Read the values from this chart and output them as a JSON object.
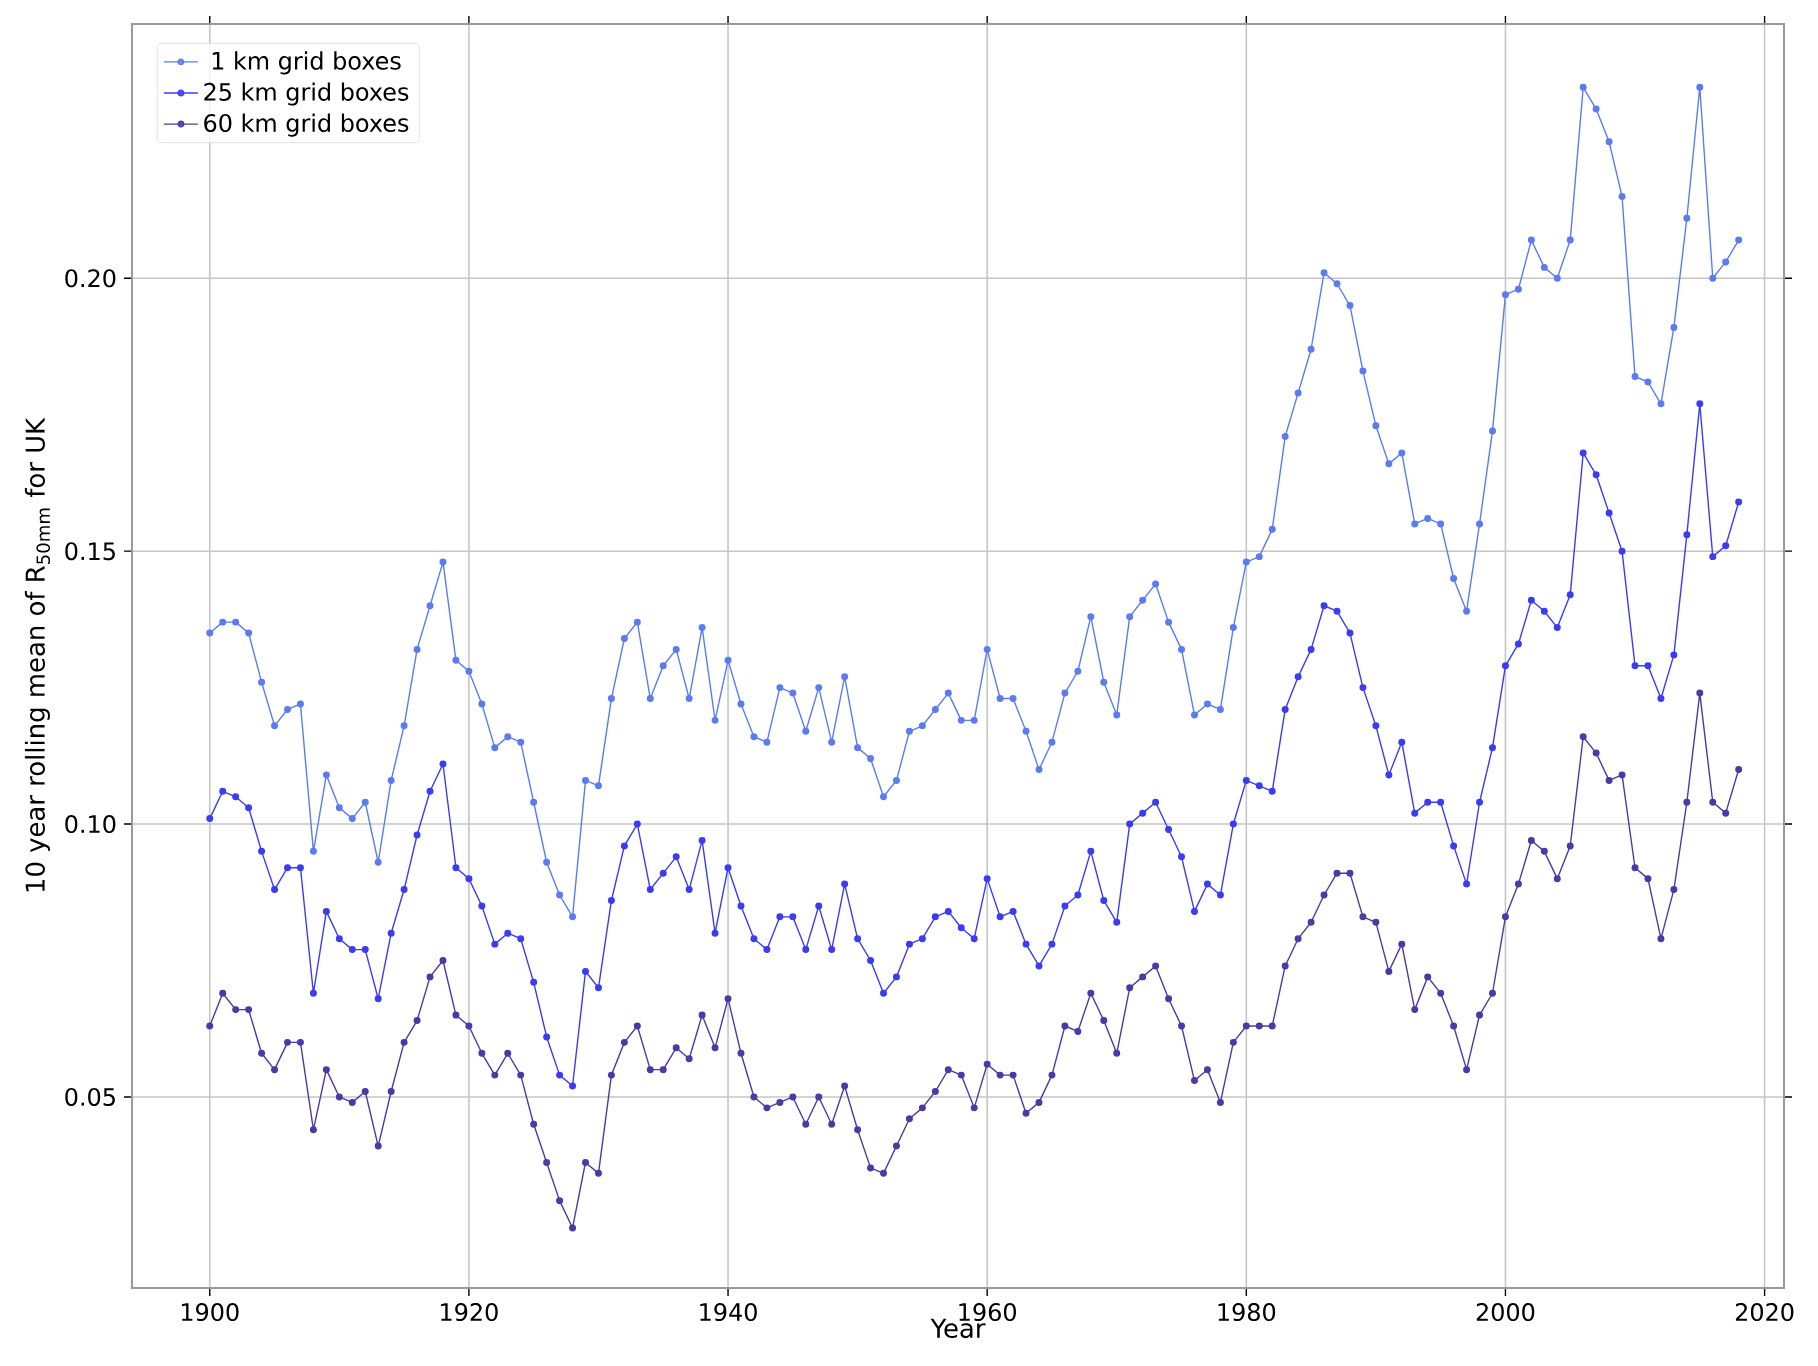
{
  "chart_data": {
    "type": "line",
    "xlabel": "Year",
    "ylabel": "10 year rolling mean of R$_{50mm}$ for UK",
    "x": [
      1900,
      1901,
      1902,
      1903,
      1904,
      1905,
      1906,
      1907,
      1908,
      1909,
      1910,
      1911,
      1912,
      1913,
      1914,
      1915,
      1916,
      1917,
      1918,
      1919,
      1920,
      1921,
      1922,
      1923,
      1924,
      1925,
      1926,
      1927,
      1928,
      1929,
      1930,
      1931,
      1932,
      1933,
      1934,
      1935,
      1936,
      1937,
      1938,
      1939,
      1940,
      1941,
      1942,
      1943,
      1944,
      1945,
      1946,
      1947,
      1948,
      1949,
      1950,
      1951,
      1952,
      1953,
      1954,
      1955,
      1956,
      1957,
      1958,
      1959,
      1960,
      1961,
      1962,
      1963,
      1964,
      1965,
      1966,
      1967,
      1968,
      1969,
      1970,
      1971,
      1972,
      1973,
      1974,
      1975,
      1976,
      1977,
      1978,
      1979,
      1980,
      1981,
      1982,
      1983,
      1984,
      1985,
      1986,
      1987,
      1988,
      1989,
      1990,
      1991,
      1992,
      1993,
      1994,
      1995,
      1996,
      1997,
      1998,
      1999,
      2000,
      2001,
      2002,
      2003,
      2004,
      2005,
      2006,
      2007,
      2008,
      2009,
      2010,
      2011,
      2012,
      2013,
      2014,
      2015,
      2016,
      2017,
      2018
    ],
    "series": [
      {
        "name": "1 km grid boxes",
        "color": "#5b7cf0",
        "values": [
          0.135,
          0.137,
          0.137,
          0.135,
          0.126,
          0.118,
          0.121,
          0.122,
          0.095,
          0.109,
          0.103,
          0.101,
          0.104,
          0.093,
          0.108,
          0.118,
          0.132,
          0.14,
          0.148,
          0.13,
          0.128,
          0.122,
          0.114,
          0.116,
          0.115,
          0.104,
          0.093,
          0.087,
          0.083,
          0.108,
          0.107,
          0.123,
          0.134,
          0.137,
          0.123,
          0.129,
          0.132,
          0.123,
          0.136,
          0.119,
          0.13,
          0.122,
          0.116,
          0.115,
          0.125,
          0.124,
          0.117,
          0.125,
          0.115,
          0.127,
          0.114,
          0.112,
          0.105,
          0.108,
          0.117,
          0.118,
          0.121,
          0.124,
          0.119,
          0.119,
          0.132,
          0.123,
          0.123,
          0.117,
          0.11,
          0.115,
          0.124,
          0.128,
          0.138,
          0.126,
          0.12,
          0.138,
          0.141,
          0.144,
          0.137,
          0.132,
          0.12,
          0.122,
          0.121,
          0.136,
          0.148,
          0.149,
          0.154,
          0.171,
          0.179,
          0.187,
          0.201,
          0.199,
          0.195,
          0.183,
          0.173,
          0.166,
          0.168,
          0.155,
          0.156,
          0.155,
          0.145,
          0.139,
          0.155,
          0.172,
          0.197,
          0.198,
          0.207,
          0.202,
          0.2,
          0.207,
          0.235,
          0.231,
          0.225,
          0.215,
          0.182,
          0.181,
          0.177,
          0.191,
          0.211,
          0.235,
          0.2,
          0.203,
          0.207
        ]
      },
      {
        "name": "25 km grid boxes",
        "color": "#3b3cf2",
        "values": [
          0.101,
          0.106,
          0.105,
          0.103,
          0.095,
          0.088,
          0.092,
          0.092,
          0.069,
          0.084,
          0.079,
          0.077,
          0.077,
          0.068,
          0.08,
          0.088,
          0.098,
          0.106,
          0.111,
          0.092,
          0.09,
          0.085,
          0.078,
          0.08,
          0.079,
          0.071,
          0.061,
          0.054,
          0.052,
          0.073,
          0.07,
          0.086,
          0.096,
          0.1,
          0.088,
          0.091,
          0.094,
          0.088,
          0.097,
          0.08,
          0.092,
          0.085,
          0.079,
          0.077,
          0.083,
          0.083,
          0.077,
          0.085,
          0.077,
          0.089,
          0.079,
          0.075,
          0.069,
          0.072,
          0.078,
          0.079,
          0.083,
          0.084,
          0.081,
          0.079,
          0.09,
          0.083,
          0.084,
          0.078,
          0.074,
          0.078,
          0.085,
          0.087,
          0.095,
          0.086,
          0.082,
          0.1,
          0.102,
          0.104,
          0.099,
          0.094,
          0.084,
          0.089,
          0.087,
          0.1,
          0.108,
          0.107,
          0.106,
          0.121,
          0.127,
          0.132,
          0.14,
          0.139,
          0.135,
          0.125,
          0.118,
          0.109,
          0.115,
          0.102,
          0.104,
          0.104,
          0.096,
          0.089,
          0.104,
          0.114,
          0.129,
          0.133,
          0.141,
          0.139,
          0.136,
          0.142,
          0.168,
          0.164,
          0.157,
          0.15,
          0.129,
          0.129,
          0.123,
          0.131,
          0.153,
          0.177,
          0.149,
          0.151,
          0.159
        ]
      },
      {
        "name": "60 km grid boxes",
        "color": "#4a3aa6",
        "values": [
          0.063,
          0.069,
          0.066,
          0.066,
          0.058,
          0.055,
          0.06,
          0.06,
          0.044,
          0.055,
          0.05,
          0.049,
          0.051,
          0.041,
          0.051,
          0.06,
          0.064,
          0.072,
          0.075,
          0.065,
          0.063,
          0.058,
          0.054,
          0.058,
          0.054,
          0.045,
          0.038,
          0.031,
          0.026,
          0.038,
          0.036,
          0.054,
          0.06,
          0.063,
          0.055,
          0.055,
          0.059,
          0.057,
          0.065,
          0.059,
          0.068,
          0.058,
          0.05,
          0.048,
          0.049,
          0.05,
          0.045,
          0.05,
          0.045,
          0.052,
          0.044,
          0.037,
          0.036,
          0.041,
          0.046,
          0.048,
          0.051,
          0.055,
          0.054,
          0.048,
          0.056,
          0.054,
          0.054,
          0.047,
          0.049,
          0.054,
          0.063,
          0.062,
          0.069,
          0.064,
          0.058,
          0.07,
          0.072,
          0.074,
          0.068,
          0.063,
          0.053,
          0.055,
          0.049,
          0.06,
          0.063,
          0.063,
          0.063,
          0.074,
          0.079,
          0.082,
          0.087,
          0.091,
          0.091,
          0.083,
          0.082,
          0.073,
          0.078,
          0.066,
          0.072,
          0.069,
          0.063,
          0.055,
          0.065,
          0.069,
          0.083,
          0.089,
          0.097,
          0.095,
          0.09,
          0.096,
          0.116,
          0.113,
          0.108,
          0.109,
          0.092,
          0.09,
          0.079,
          0.088,
          0.104,
          0.124,
          0.104,
          0.102,
          0.11
        ]
      }
    ],
    "xlim": [
      1894,
      2021.5
    ],
    "ylim": [
      0.015,
      0.2466
    ],
    "xticks": [
      1900,
      1920,
      1940,
      1960,
      1980,
      2000,
      2020
    ],
    "yticks": [
      {
        "value": 0.05,
        "label": "0.05"
      },
      {
        "value": 0.1,
        "label": "0.10"
      },
      {
        "value": 0.15,
        "label": "0.15"
      },
      {
        "value": 0.2,
        "label": "0.20"
      }
    ],
    "grid": true,
    "legend": "top left",
    "marker": "circle",
    "line_style": "solid"
  }
}
